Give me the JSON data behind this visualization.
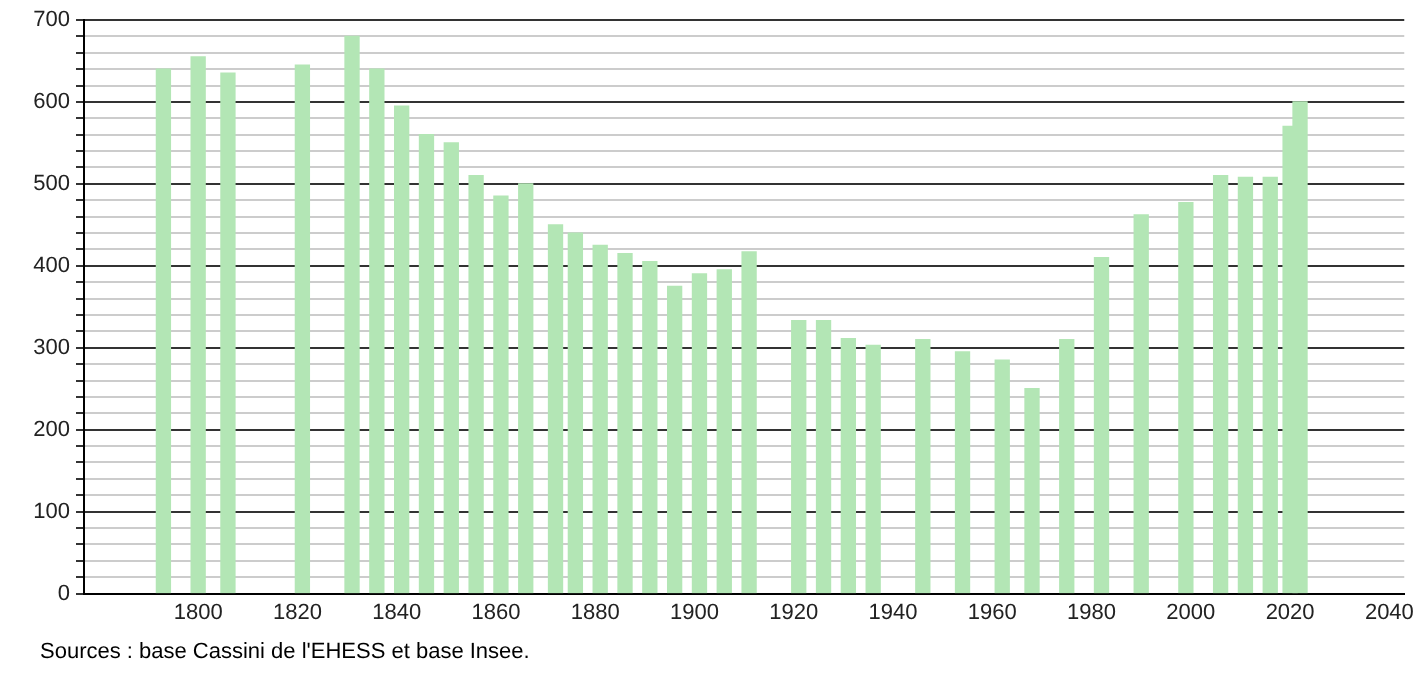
{
  "chart_data": {
    "type": "bar",
    "x": [
      1793,
      1800,
      1806,
      1821,
      1831,
      1836,
      1841,
      1846,
      1851,
      1856,
      1861,
      1866,
      1872,
      1876,
      1881,
      1886,
      1891,
      1896,
      1901,
      1906,
      1911,
      1921,
      1926,
      1931,
      1936,
      1946,
      1954,
      1962,
      1968,
      1975,
      1982,
      1990,
      1999,
      2006,
      2011,
      2016,
      2020,
      2022
    ],
    "values": [
      640,
      655,
      635,
      645,
      680,
      640,
      595,
      560,
      550,
      510,
      485,
      500,
      450,
      440,
      425,
      415,
      405,
      375,
      390,
      395,
      417,
      333,
      333,
      311,
      303,
      310,
      295,
      285,
      250,
      310,
      410,
      462,
      477,
      510,
      508,
      508,
      570,
      600
    ],
    "color": "#b3e6b5",
    "xlim": [
      1777,
      2043
    ],
    "xticks": [
      1800,
      1820,
      1840,
      1860,
      1880,
      1900,
      1920,
      1940,
      1960,
      1980,
      2000,
      2020,
      2040
    ],
    "ylim": [
      0,
      700
    ],
    "yticks": [
      0,
      {
        "value": 20,
        "label": null
      },
      {
        "value": 40,
        "label": null
      },
      {
        "value": 60,
        "label": null
      },
      {
        "value": 80,
        "label": null
      },
      100,
      {
        "value": 120,
        "label": null
      },
      {
        "value": 140,
        "label": null
      },
      {
        "value": 160,
        "label": null
      },
      {
        "value": 180,
        "label": null
      },
      200,
      {
        "value": 220,
        "label": null
      },
      {
        "value": 240,
        "label": null
      },
      {
        "value": 260,
        "label": null
      },
      {
        "value": 280,
        "label": null
      },
      300,
      {
        "value": 320,
        "label": null
      },
      {
        "value": 340,
        "label": null
      },
      {
        "value": 360,
        "label": null
      },
      {
        "value": 380,
        "label": null
      },
      400,
      {
        "value": 420,
        "label": null
      },
      {
        "value": 440,
        "label": null
      },
      {
        "value": 460,
        "label": null
      },
      {
        "value": 480,
        "label": null
      },
      500,
      {
        "value": 520,
        "label": null
      },
      {
        "value": 540,
        "label": null
      },
      {
        "value": 560,
        "label": null
      },
      {
        "value": 580,
        "label": null
      },
      600,
      {
        "value": 620,
        "label": null
      },
      {
        "value": 640,
        "label": null
      },
      {
        "value": 660,
        "label": null
      },
      {
        "value": 680,
        "label": null
      },
      700
    ],
    "grid": "y",
    "legend": false,
    "annotations": [
      "Sources : base Cassini de l'EHESS et base Insee."
    ]
  }
}
